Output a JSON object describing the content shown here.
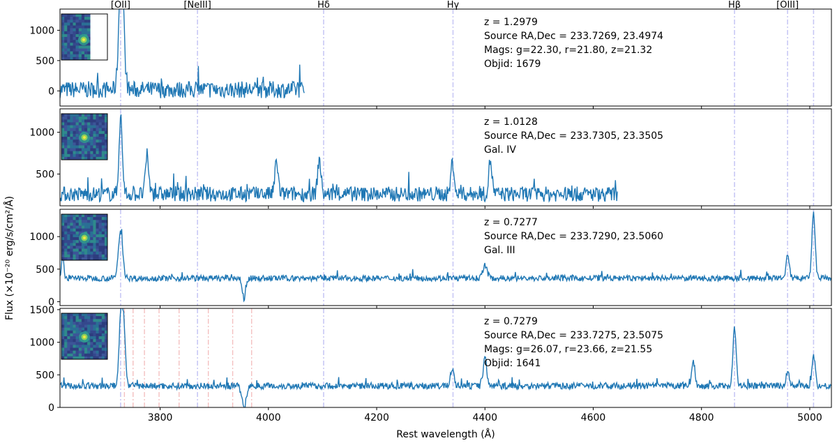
{
  "chart_data": {
    "type": "line",
    "xlabel": "Rest wavelength (Å)",
    "ylabel": "Flux (×10⁻²⁰ erg/s/cm²/Å)",
    "xlim": [
      3615,
      5040
    ],
    "x_ticks": [
      3800,
      4000,
      4200,
      4400,
      4600,
      4800,
      5000
    ],
    "line_markers": [
      {
        "label": "[OII]",
        "x": 3727
      },
      {
        "label": "[NeIII]",
        "x": 3869
      },
      {
        "label": "Hδ",
        "x": 4102
      },
      {
        "label": "Hγ",
        "x": 4341
      },
      {
        "label": "Hβ",
        "x": 4861
      },
      {
        "label": "[OIII]",
        "x": 4959
      },
      {
        "label": "",
        "x": 5007
      }
    ],
    "extra_markers_panel4": [
      3734,
      3750,
      3771,
      3798,
      3835,
      3889,
      3934,
      3969
    ],
    "panels": [
      {
        "ylim": [
          -250,
          1350
        ],
        "y_ticks": [
          0,
          500,
          1000
        ],
        "info": [
          "z = 1.2979",
          "Source RA,Dec = 233.7269, 23.4974",
          "Mags: g=22.30, r=21.80, z=21.32",
          "Objid: 1679"
        ],
        "spectrum": {
          "x_range": [
            3615,
            4067
          ],
          "baseline": 20,
          "noise": 140,
          "features": [
            [
              3727,
              1250,
              4
            ],
            [
              3730,
              1050,
              4
            ]
          ]
        }
      },
      {
        "ylim": [
          120,
          1280
        ],
        "y_ticks": [
          500,
          1000
        ],
        "info": [
          "z = 1.0128",
          "Source RA,Dec = 233.7305, 23.3505",
          "Gal. IV"
        ],
        "spectrum": {
          "x_range": [
            3615,
            4645
          ],
          "baseline": 260,
          "noise": 90,
          "features": [
            [
              3727,
              1180,
              3
            ],
            [
              3776,
              720,
              3
            ],
            [
              4015,
              650,
              3
            ],
            [
              4094,
              680,
              3
            ],
            [
              4340,
              640,
              3
            ],
            [
              4410,
              660,
              3
            ]
          ]
        }
      },
      {
        "ylim": [
          -60,
          1420
        ],
        "y_ticks": [
          0,
          500,
          1000
        ],
        "info": [
          "z = 0.7277",
          "Source RA,Dec = 233.7290, 23.5060",
          "Gal. III"
        ],
        "spectrum": {
          "x_range": [
            3615,
            5040
          ],
          "baseline": 360,
          "noise": 45,
          "features": [
            [
              3727,
              1080,
              4
            ],
            [
              3620,
              760,
              2
            ],
            [
              3955,
              40,
              3
            ],
            [
              4400,
              560,
              4
            ],
            [
              4959,
              700,
              3
            ],
            [
              5007,
              1350,
              3
            ]
          ]
        }
      },
      {
        "ylim": [
          0,
          1520
        ],
        "y_ticks": [
          0,
          500,
          1000,
          1500
        ],
        "info": [
          "z = 0.7279",
          "Source RA,Dec = 233.7275, 23.5075",
          "Mags: g=26.07, r=23.66, z=21.55",
          "Objid: 1641"
        ],
        "spectrum": {
          "x_range": [
            3615,
            5040
          ],
          "baseline": 330,
          "noise": 50,
          "features": [
            [
              3727,
              1380,
              3
            ],
            [
              3733,
              1250,
              3
            ],
            [
              3955,
              0,
              4
            ],
            [
              4340,
              610,
              3
            ],
            [
              4400,
              800,
              3
            ],
            [
              4861,
              1210,
              3
            ],
            [
              4959,
              560,
              3
            ],
            [
              5007,
              810,
              3
            ],
            [
              4785,
              700,
              3
            ]
          ]
        }
      }
    ]
  },
  "colors": {
    "series": "#1f77b4",
    "marker_blue": "#c8c8f5",
    "marker_red": "#f4c0c0",
    "frame": "#000000"
  }
}
